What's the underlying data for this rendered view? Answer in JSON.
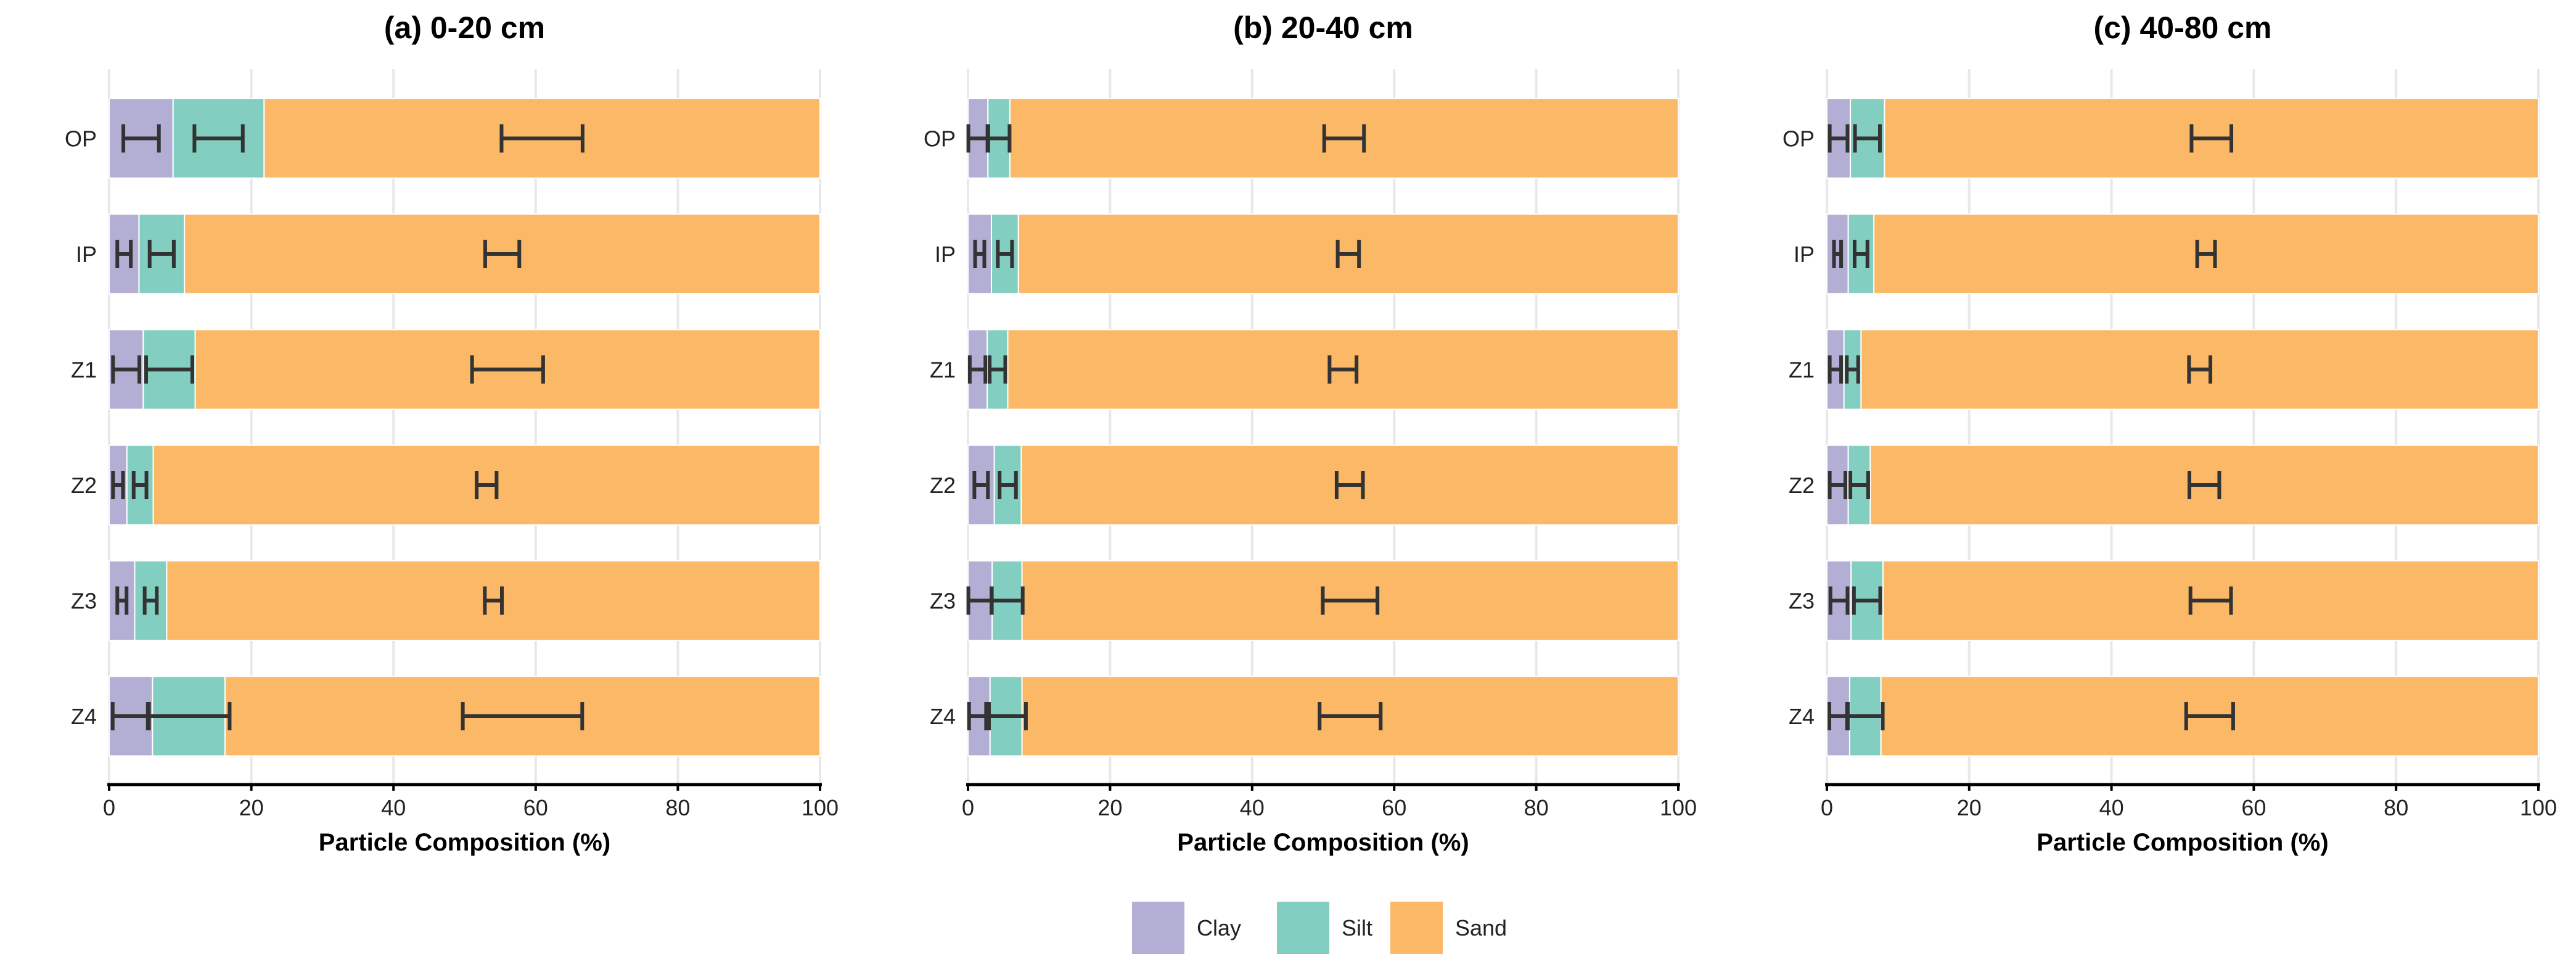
{
  "chart_data": {
    "type": "bar",
    "orientation": "horizontal-stacked",
    "categories": [
      "OP",
      "IP",
      "Z1",
      "Z2",
      "Z3",
      "Z4"
    ],
    "components": [
      "Clay",
      "Silt",
      "Sand"
    ],
    "colors": {
      "Clay": "#b3aed4",
      "Silt": "#82cfc1",
      "Sand": "#fbb866",
      "error": "#333333",
      "grid": "#e8e8e8"
    },
    "xlim": [
      0,
      100
    ],
    "xticks": [
      "0",
      "20",
      "40",
      "60",
      "80",
      "100"
    ],
    "grid": true,
    "legend": {
      "placement": "bottom",
      "entries": [
        "Clay",
        "Silt",
        "Sand"
      ]
    },
    "panels": [
      {
        "title": "(a) 0-20 cm",
        "xlabel": "Particle Composition (%)",
        "series": [
          {
            "name": "Clay",
            "values": [
              9.0,
              4.2,
              4.8,
              2.5,
              3.6,
              6.1
            ],
            "error": [
              2.5,
              0.95,
              1.85,
              0.7,
              0.65,
              2.55
            ]
          },
          {
            "name": "Silt",
            "values": [
              12.8,
              6.4,
              7.3,
              3.7,
              4.5,
              10.2
            ],
            "error": [
              3.4,
              1.7,
              3.25,
              0.9,
              0.85,
              5.75
            ]
          },
          {
            "name": "Sand",
            "values": [
              78.2,
              89.4,
              87.9,
              93.8,
              91.9,
              83.7
            ],
            "error": [
              5.7,
              2.4,
              5.0,
              1.4,
              1.2,
              8.4
            ]
          }
        ]
      },
      {
        "title": "(b) 20-40 cm",
        "xlabel": "Particle Composition (%)",
        "series": [
          {
            "name": "Clay",
            "values": [
              2.8,
              3.3,
              2.7,
              3.7,
              3.4,
              3.1
            ],
            "error": [
              1.35,
              0.65,
              1.1,
              0.95,
              1.65,
              1.4
            ]
          },
          {
            "name": "Silt",
            "values": [
              3.1,
              3.8,
              2.9,
              3.8,
              4.2,
              4.5
            ],
            "error": [
              1.5,
              1.0,
              1.1,
              1.15,
              2.2,
              2.8
            ]
          },
          {
            "name": "Sand",
            "values": [
              94.1,
              92.9,
              94.4,
              92.5,
              92.4,
              92.4
            ],
            "error": [
              2.8,
              1.5,
              1.9,
              1.85,
              3.85,
              4.3
            ]
          }
        ]
      },
      {
        "title": "(c) 40-80 cm",
        "xlabel": "Particle Composition (%)",
        "series": [
          {
            "name": "Clay",
            "values": [
              3.3,
              3.0,
              2.4,
              3.0,
              3.4,
              3.2
            ],
            "error": [
              1.25,
              0.5,
              0.8,
              1.1,
              1.2,
              1.25
            ]
          },
          {
            "name": "Silt",
            "values": [
              4.8,
              3.6,
              2.4,
              3.1,
              4.5,
              4.4
            ],
            "error": [
              1.75,
              0.9,
              0.8,
              1.25,
              1.85,
              2.45
            ]
          },
          {
            "name": "Sand",
            "values": [
              91.9,
              93.4,
              95.2,
              93.9,
              92.1,
              92.4
            ],
            "error": [
              2.8,
              1.25,
              1.5,
              2.1,
              2.85,
              3.3
            ]
          }
        ]
      }
    ]
  }
}
